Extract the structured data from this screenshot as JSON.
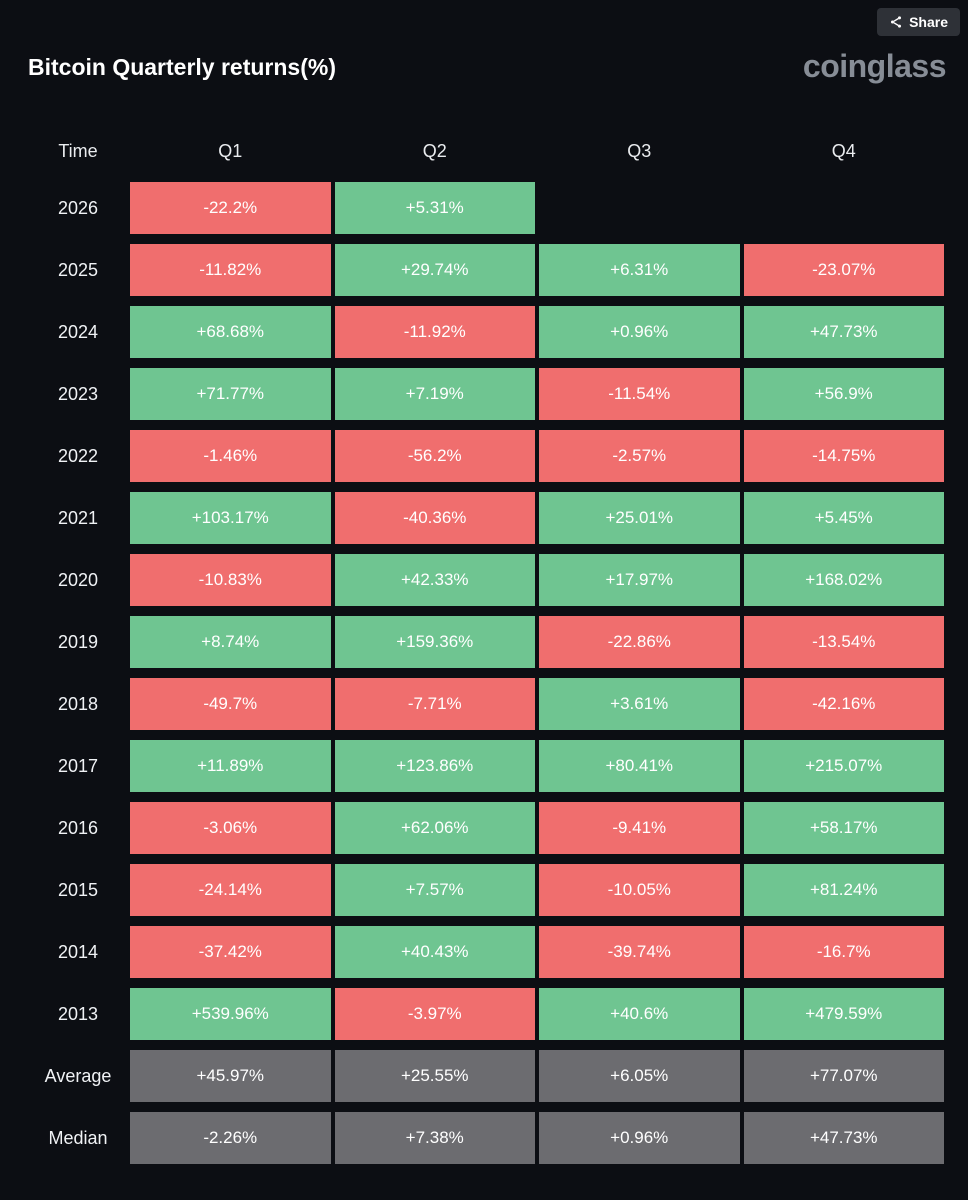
{
  "header": {
    "title": "Bitcoin Quarterly returns(%)",
    "share_label": "Share",
    "logo": "coinglass"
  },
  "colors": {
    "positive": "#6FC591",
    "negative": "#F06E6E",
    "neutral": "#6C6C70",
    "background": "#0C0E13"
  },
  "table": {
    "columns": [
      "Time",
      "Q1",
      "Q2",
      "Q3",
      "Q4"
    ],
    "rows": [
      {
        "label": "2026",
        "cells": [
          {
            "text": "-22.2%",
            "type": "negative"
          },
          {
            "text": "+5.31%",
            "type": "positive"
          },
          null,
          null
        ]
      },
      {
        "label": "2025",
        "cells": [
          {
            "text": "-11.82%",
            "type": "negative"
          },
          {
            "text": "+29.74%",
            "type": "positive"
          },
          {
            "text": "+6.31%",
            "type": "positive"
          },
          {
            "text": "-23.07%",
            "type": "negative"
          }
        ]
      },
      {
        "label": "2024",
        "cells": [
          {
            "text": "+68.68%",
            "type": "positive"
          },
          {
            "text": "-11.92%",
            "type": "negative"
          },
          {
            "text": "+0.96%",
            "type": "positive"
          },
          {
            "text": "+47.73%",
            "type": "positive"
          }
        ]
      },
      {
        "label": "2023",
        "cells": [
          {
            "text": "+71.77%",
            "type": "positive"
          },
          {
            "text": "+7.19%",
            "type": "positive"
          },
          {
            "text": "-11.54%",
            "type": "negative"
          },
          {
            "text": "+56.9%",
            "type": "positive"
          }
        ]
      },
      {
        "label": "2022",
        "cells": [
          {
            "text": "-1.46%",
            "type": "negative"
          },
          {
            "text": "-56.2%",
            "type": "negative"
          },
          {
            "text": "-2.57%",
            "type": "negative"
          },
          {
            "text": "-14.75%",
            "type": "negative"
          }
        ]
      },
      {
        "label": "2021",
        "cells": [
          {
            "text": "+103.17%",
            "type": "positive"
          },
          {
            "text": "-40.36%",
            "type": "negative"
          },
          {
            "text": "+25.01%",
            "type": "positive"
          },
          {
            "text": "+5.45%",
            "type": "positive"
          }
        ]
      },
      {
        "label": "2020",
        "cells": [
          {
            "text": "-10.83%",
            "type": "negative"
          },
          {
            "text": "+42.33%",
            "type": "positive"
          },
          {
            "text": "+17.97%",
            "type": "positive"
          },
          {
            "text": "+168.02%",
            "type": "positive"
          }
        ]
      },
      {
        "label": "2019",
        "cells": [
          {
            "text": "+8.74%",
            "type": "positive"
          },
          {
            "text": "+159.36%",
            "type": "positive"
          },
          {
            "text": "-22.86%",
            "type": "negative"
          },
          {
            "text": "-13.54%",
            "type": "negative"
          }
        ]
      },
      {
        "label": "2018",
        "cells": [
          {
            "text": "-49.7%",
            "type": "negative"
          },
          {
            "text": "-7.71%",
            "type": "negative"
          },
          {
            "text": "+3.61%",
            "type": "positive"
          },
          {
            "text": "-42.16%",
            "type": "negative"
          }
        ]
      },
      {
        "label": "2017",
        "cells": [
          {
            "text": "+11.89%",
            "type": "positive"
          },
          {
            "text": "+123.86%",
            "type": "positive"
          },
          {
            "text": "+80.41%",
            "type": "positive"
          },
          {
            "text": "+215.07%",
            "type": "positive"
          }
        ]
      },
      {
        "label": "2016",
        "cells": [
          {
            "text": "-3.06%",
            "type": "negative"
          },
          {
            "text": "+62.06%",
            "type": "positive"
          },
          {
            "text": "-9.41%",
            "type": "negative"
          },
          {
            "text": "+58.17%",
            "type": "positive"
          }
        ]
      },
      {
        "label": "2015",
        "cells": [
          {
            "text": "-24.14%",
            "type": "negative"
          },
          {
            "text": "+7.57%",
            "type": "positive"
          },
          {
            "text": "-10.05%",
            "type": "negative"
          },
          {
            "text": "+81.24%",
            "type": "positive"
          }
        ]
      },
      {
        "label": "2014",
        "cells": [
          {
            "text": "-37.42%",
            "type": "negative"
          },
          {
            "text": "+40.43%",
            "type": "positive"
          },
          {
            "text": "-39.74%",
            "type": "negative"
          },
          {
            "text": "-16.7%",
            "type": "negative"
          }
        ]
      },
      {
        "label": "2013",
        "cells": [
          {
            "text": "+539.96%",
            "type": "positive"
          },
          {
            "text": "-3.97%",
            "type": "negative"
          },
          {
            "text": "+40.6%",
            "type": "positive"
          },
          {
            "text": "+479.59%",
            "type": "positive"
          }
        ]
      },
      {
        "label": "Average",
        "cells": [
          {
            "text": "+45.97%",
            "type": "neutral"
          },
          {
            "text": "+25.55%",
            "type": "neutral"
          },
          {
            "text": "+6.05%",
            "type": "neutral"
          },
          {
            "text": "+77.07%",
            "type": "neutral"
          }
        ]
      },
      {
        "label": "Median",
        "cells": [
          {
            "text": "-2.26%",
            "type": "neutral"
          },
          {
            "text": "+7.38%",
            "type": "neutral"
          },
          {
            "text": "+0.96%",
            "type": "neutral"
          },
          {
            "text": "+47.73%",
            "type": "neutral"
          }
        ]
      }
    ]
  },
  "chart_data": {
    "type": "heatmap",
    "title": "Bitcoin Quarterly returns(%)",
    "columns": [
      "Q1",
      "Q2",
      "Q3",
      "Q4"
    ],
    "rows": [
      "2026",
      "2025",
      "2024",
      "2023",
      "2022",
      "2021",
      "2020",
      "2019",
      "2018",
      "2017",
      "2016",
      "2015",
      "2014",
      "2013",
      "Average",
      "Median"
    ],
    "values": [
      [
        -22.2,
        5.31,
        null,
        null
      ],
      [
        -11.82,
        29.74,
        6.31,
        -23.07
      ],
      [
        68.68,
        -11.92,
        0.96,
        47.73
      ],
      [
        71.77,
        7.19,
        -11.54,
        56.9
      ],
      [
        -1.46,
        -56.2,
        -2.57,
        -14.75
      ],
      [
        103.17,
        -40.36,
        25.01,
        5.45
      ],
      [
        -10.83,
        42.33,
        17.97,
        168.02
      ],
      [
        8.74,
        159.36,
        -22.86,
        -13.54
      ],
      [
        -49.7,
        -7.71,
        3.61,
        -42.16
      ],
      [
        11.89,
        123.86,
        80.41,
        215.07
      ],
      [
        -3.06,
        62.06,
        -9.41,
        58.17
      ],
      [
        -24.14,
        7.57,
        -10.05,
        81.24
      ],
      [
        -37.42,
        40.43,
        -39.74,
        -16.7
      ],
      [
        539.96,
        -3.97,
        40.6,
        479.59
      ],
      [
        45.97,
        25.55,
        6.05,
        77.07
      ],
      [
        -2.26,
        7.38,
        0.96,
        47.73
      ]
    ],
    "legend": "green = positive return, red = negative return, gray = summary rows",
    "unit": "%"
  }
}
